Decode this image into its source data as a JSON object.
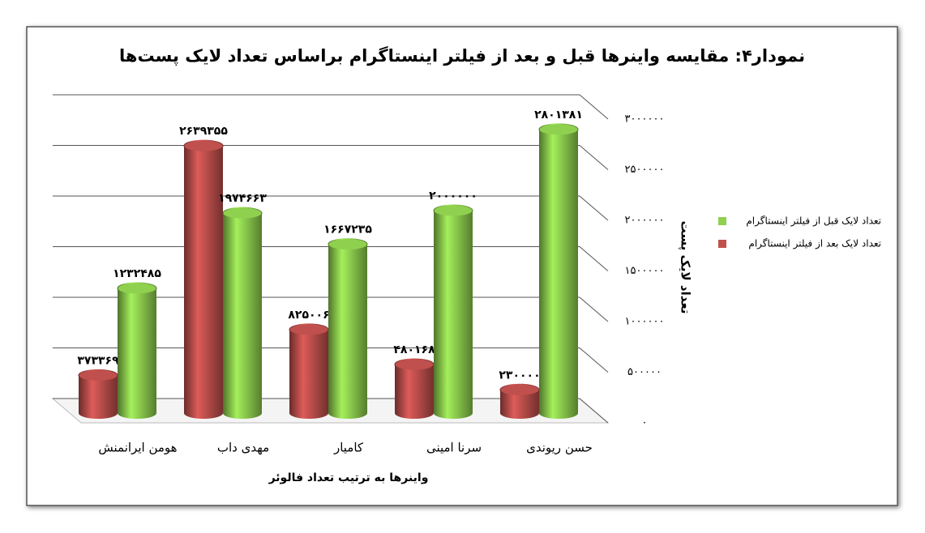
{
  "chart_data": {
    "type": "bar3d",
    "title": "نمودار۴: مقایسه واینرها قبل و بعد از فیلتر اینستاگرام براساس تعداد لایک پست‌ها",
    "x_label": "واینرها به ترتیب تعداد فالوئر",
    "y_label": "تعداد لایک پست",
    "reverse_x": true,
    "y_axis_side": "right",
    "legend": "right",
    "grid": true,
    "categories": [
      "حسن ریوندی",
      "سرنا امینی",
      "کامیار",
      "مهدی داب",
      "هومن ایرانمنش"
    ],
    "series": [
      {
        "name": "تعداد لایک قبل از فیلتر اینستاگرام",
        "color": "#8fd14f",
        "values": [
          2801381,
          2000000,
          1667235,
          1974663,
          1232485
        ],
        "value_labels": [
          "۲۸۰۱۳۸۱",
          "۲۰۰۰۰۰۰",
          "۱۶۶۷۲۳۵",
          "۱۹۷۴۶۶۳",
          "۱۲۳۲۴۸۵"
        ]
      },
      {
        "name": "تعداد لایک بعد از فیلتر اینستاگرام",
        "color": "#c0504d",
        "values": [
          230000,
          480168,
          825006,
          2639355,
          373369
        ],
        "value_labels": [
          "۲۳۰۰۰۰",
          "۴۸۰۱۶۸",
          "۸۲۵۰۰۶",
          "۲۶۳۹۳۵۵",
          "۳۷۳۳۶۹"
        ]
      }
    ],
    "ylim": [
      0,
      3000000
    ],
    "yticks": [
      {
        "value": 0,
        "label": "۰"
      },
      {
        "value": 500000,
        "label": "۵۰۰۰۰۰"
      },
      {
        "value": 1000000,
        "label": "۱۰۰۰۰۰۰"
      },
      {
        "value": 1500000,
        "label": "۱۵۰۰۰۰۰"
      },
      {
        "value": 2000000,
        "label": "۲۰۰۰۰۰۰"
      },
      {
        "value": 2500000,
        "label": "۲۵۰۰۰۰۰"
      },
      {
        "value": 3000000,
        "label": "۳۰۰۰۰۰۰"
      }
    ]
  }
}
